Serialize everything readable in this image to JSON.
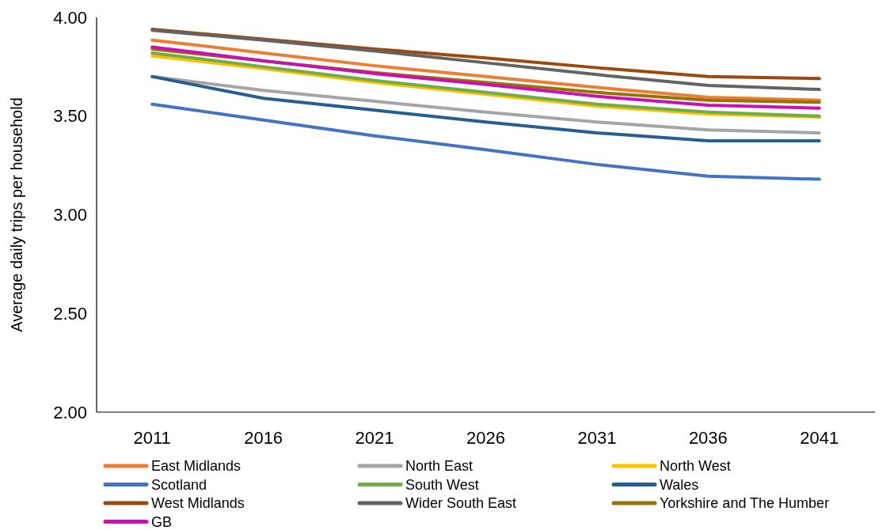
{
  "chart_data": {
    "type": "line",
    "ylabel": "Average daily trips per household",
    "categories": [
      "2011",
      "2016",
      "2021",
      "2026",
      "2031",
      "2036",
      "2041"
    ],
    "ylim": [
      2,
      4
    ],
    "yticks": [
      {
        "value": 2,
        "label": "2.00"
      },
      {
        "value": 2.5,
        "label": "2.50"
      },
      {
        "value": 3,
        "label": "3.00"
      },
      {
        "value": 3.5,
        "label": "3.50"
      },
      {
        "value": 4,
        "label": "4.00"
      }
    ],
    "grid": false,
    "legend": "bottom",
    "marker": "none",
    "line_style": "solid",
    "series": [
      {
        "name": "East Midlands",
        "color": "#ed7d31",
        "values": [
          3.885,
          3.82,
          3.755,
          3.7,
          3.645,
          3.595,
          3.58
        ]
      },
      {
        "name": "North East",
        "color": "#a5a5a5",
        "values": [
          3.7,
          3.63,
          3.575,
          3.52,
          3.47,
          3.43,
          3.415
        ]
      },
      {
        "name": "North West",
        "color": "#ffc000",
        "values": [
          3.805,
          3.74,
          3.67,
          3.61,
          3.55,
          3.51,
          3.495
        ]
      },
      {
        "name": "Scotland",
        "color": "#4472c4",
        "values": [
          3.56,
          3.48,
          3.4,
          3.33,
          3.255,
          3.195,
          3.18
        ]
      },
      {
        "name": "South West",
        "color": "#70ad47",
        "values": [
          3.82,
          3.75,
          3.68,
          3.62,
          3.56,
          3.52,
          3.5
        ]
      },
      {
        "name": "Wales",
        "color": "#255e91",
        "values": [
          3.7,
          3.59,
          3.53,
          3.47,
          3.415,
          3.375,
          3.375
        ]
      },
      {
        "name": "West Midlands",
        "color": "#9e480e",
        "values": [
          3.94,
          3.89,
          3.84,
          3.795,
          3.745,
          3.7,
          3.69
        ]
      },
      {
        "name": "Wider South East",
        "color": "#636363",
        "values": [
          3.935,
          3.885,
          3.83,
          3.77,
          3.71,
          3.655,
          3.635
        ]
      },
      {
        "name": "Yorkshire and The Humber",
        "color": "#997300",
        "values": [
          3.84,
          3.78,
          3.72,
          3.67,
          3.62,
          3.58,
          3.57
        ]
      },
      {
        "name": "GB",
        "color": "#cc0fb4",
        "values": [
          3.85,
          3.78,
          3.715,
          3.66,
          3.6,
          3.555,
          3.54
        ]
      }
    ]
  }
}
